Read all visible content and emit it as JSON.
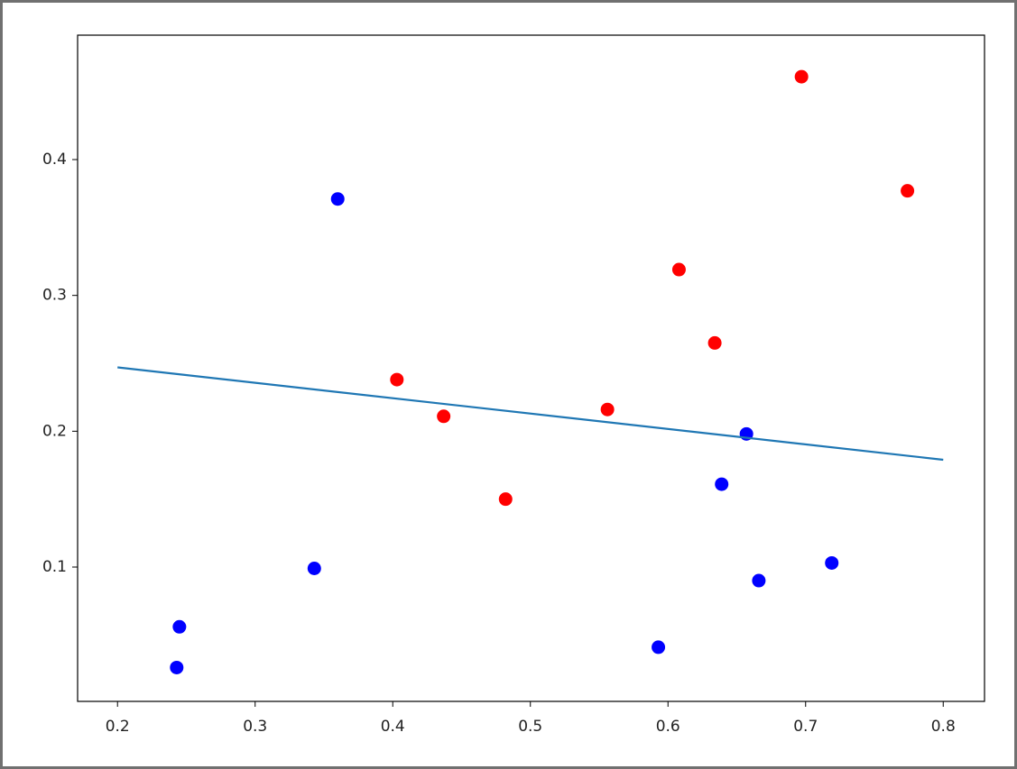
{
  "chart_data": {
    "type": "scatter",
    "xlim": [
      0.171,
      0.83
    ],
    "ylim": [
      0.0011,
      0.4916
    ],
    "xticks": [
      0.2,
      0.3,
      0.4,
      0.5,
      0.6,
      0.7,
      0.8
    ],
    "yticks": [
      0.1,
      0.2,
      0.3,
      0.4
    ],
    "series": [
      {
        "type": "scatter",
        "color": "#ff0000",
        "x": [
          0.697,
          0.774,
          0.608,
          0.634,
          0.403,
          0.437,
          0.556,
          0.482
        ],
        "values": [
          0.461,
          0.377,
          0.319,
          0.265,
          0.238,
          0.211,
          0.216,
          0.15
        ]
      },
      {
        "type": "scatter",
        "color": "#0000ff",
        "x": [
          0.36,
          0.657,
          0.639,
          0.343,
          0.719,
          0.666,
          0.245,
          0.243,
          0.593
        ],
        "values": [
          0.371,
          0.198,
          0.161,
          0.099,
          0.103,
          0.09,
          0.056,
          0.026,
          0.041
        ]
      },
      {
        "type": "line",
        "color": "#1f77b4",
        "x": [
          0.2,
          0.8
        ],
        "values": [
          0.247,
          0.179
        ]
      }
    ]
  }
}
